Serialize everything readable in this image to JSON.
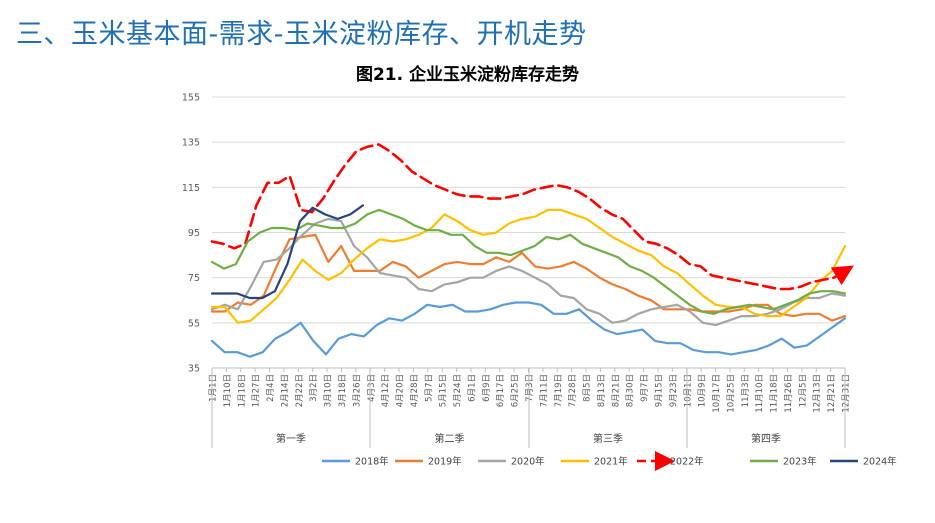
{
  "section_title": "三、玉米基本面-需求-玉米淀粉库存、开机走势",
  "chart_data": {
    "type": "line",
    "title": "图21. 企业玉米淀粉库存走势",
    "ylim": [
      35,
      155
    ],
    "yticks": [
      35,
      55,
      75,
      95,
      115,
      135,
      155
    ],
    "grid": true,
    "legend_position": "bottom",
    "x_labels": [
      "1月1日",
      "1月10日",
      "1月18日",
      "1月27日",
      "2月4日",
      "2月14日",
      "2月22日",
      "3月2日",
      "3月10日",
      "3月18日",
      "3月26日",
      "4月3日",
      "4月12日",
      "4月20日",
      "4月28日",
      "5月7日",
      "5月15日",
      "5月24日",
      "6月1日",
      "6月9日",
      "6月17日",
      "6月25日",
      "7月3日",
      "7月11日",
      "7月19日",
      "7月28日",
      "8月5日",
      "8月13日",
      "8月21日",
      "8月30日",
      "9月7日",
      "9月15日",
      "9月23日",
      "10月1日",
      "10月9日",
      "10月17日",
      "10月25日",
      "11月3日",
      "11月10日",
      "11月18日",
      "11月26日",
      "12月5日",
      "12月13日",
      "12月21日",
      "12月31日"
    ],
    "quarters": [
      "第一季",
      "第二季",
      "第三季",
      "第四季"
    ],
    "series": [
      {
        "name": "2018年",
        "color": "#5b9bd5",
        "dashed": false,
        "values": [
          47,
          42,
          42,
          40,
          42,
          48,
          51,
          55,
          47,
          41,
          48,
          50,
          49,
          54,
          57,
          56,
          59,
          63,
          62,
          63,
          60,
          60,
          61,
          63,
          64,
          64,
          63,
          59,
          59,
          61,
          56,
          52,
          50,
          51,
          52,
          47,
          46,
          46,
          43,
          42,
          42,
          41,
          42,
          43,
          45,
          48,
          44,
          45,
          49,
          53,
          57
        ]
      },
      {
        "name": "2019年",
        "color": "#ed7d31",
        "dashed": false,
        "values": [
          60,
          60,
          64,
          63,
          67,
          80,
          92,
          93,
          94,
          82,
          89,
          78,
          78,
          78,
          82,
          80,
          75,
          78,
          81,
          82,
          81,
          81,
          84,
          82,
          86,
          80,
          79,
          80,
          82,
          79,
          75,
          72,
          70,
          67,
          65,
          61,
          61,
          61,
          60,
          60,
          60,
          61,
          63,
          63,
          59,
          58,
          59,
          59,
          56,
          58
        ]
      },
      {
        "name": "2020年",
        "color": "#a5a5a5",
        "dashed": false,
        "values": [
          61,
          63,
          61,
          71,
          82,
          83,
          88,
          94,
          99,
          101,
          100,
          89,
          84,
          77,
          76,
          75,
          70,
          69,
          72,
          73,
          75,
          75,
          78,
          80,
          78,
          75,
          72,
          67,
          66,
          61,
          59,
          55,
          56,
          59,
          61,
          62,
          63,
          60,
          55,
          54,
          56,
          58,
          58,
          59,
          61,
          64,
          66,
          66,
          68,
          67
        ]
      },
      {
        "name": "2021年",
        "color": "#ffc000",
        "dashed": false,
        "values": [
          62,
          62,
          55,
          56,
          61,
          66,
          74,
          83,
          78,
          74,
          77,
          83,
          88,
          92,
          91,
          92,
          94,
          97,
          103,
          100,
          96,
          94,
          95,
          99,
          101,
          102,
          105,
          105,
          103,
          101,
          97,
          93,
          90,
          87,
          85,
          80,
          77,
          72,
          67,
          63,
          62,
          62,
          59,
          58,
          58,
          62,
          66,
          73,
          78,
          89
        ]
      },
      {
        "name": "2022年",
        "color": "#ff0000",
        "dashed": true,
        "values": [
          91,
          90,
          88,
          90,
          107,
          117,
          117,
          120,
          105,
          104,
          110,
          118,
          125,
          131,
          133,
          134,
          131,
          127,
          122,
          119,
          116,
          114,
          112,
          111,
          111,
          110,
          110,
          111,
          112,
          114,
          115,
          116,
          115,
          113,
          110,
          106,
          103,
          101,
          96,
          91,
          90,
          88,
          85,
          81,
          80,
          76,
          75,
          74,
          73,
          72,
          71,
          70,
          70,
          71,
          73,
          74,
          75,
          78
        ]
      },
      {
        "name": "2023年",
        "color": "#70ad47",
        "dashed": false,
        "values": [
          82,
          79,
          81,
          91,
          95,
          97,
          97,
          96,
          99,
          98,
          97,
          97,
          99,
          103,
          105,
          103,
          101,
          98,
          96,
          96,
          94,
          94,
          89,
          86,
          86,
          85,
          87,
          89,
          93,
          92,
          94,
          90,
          88,
          86,
          84,
          80,
          78,
          75,
          71,
          67,
          63,
          60,
          59,
          61,
          62,
          63,
          62,
          61,
          63,
          65,
          68,
          69,
          69,
          68
        ]
      },
      {
        "name": "2024年",
        "color": "#264478",
        "dashed": false,
        "values": [
          68,
          68,
          68,
          66,
          66,
          69,
          81,
          100,
          106,
          103,
          101,
          103,
          107
        ]
      }
    ]
  }
}
